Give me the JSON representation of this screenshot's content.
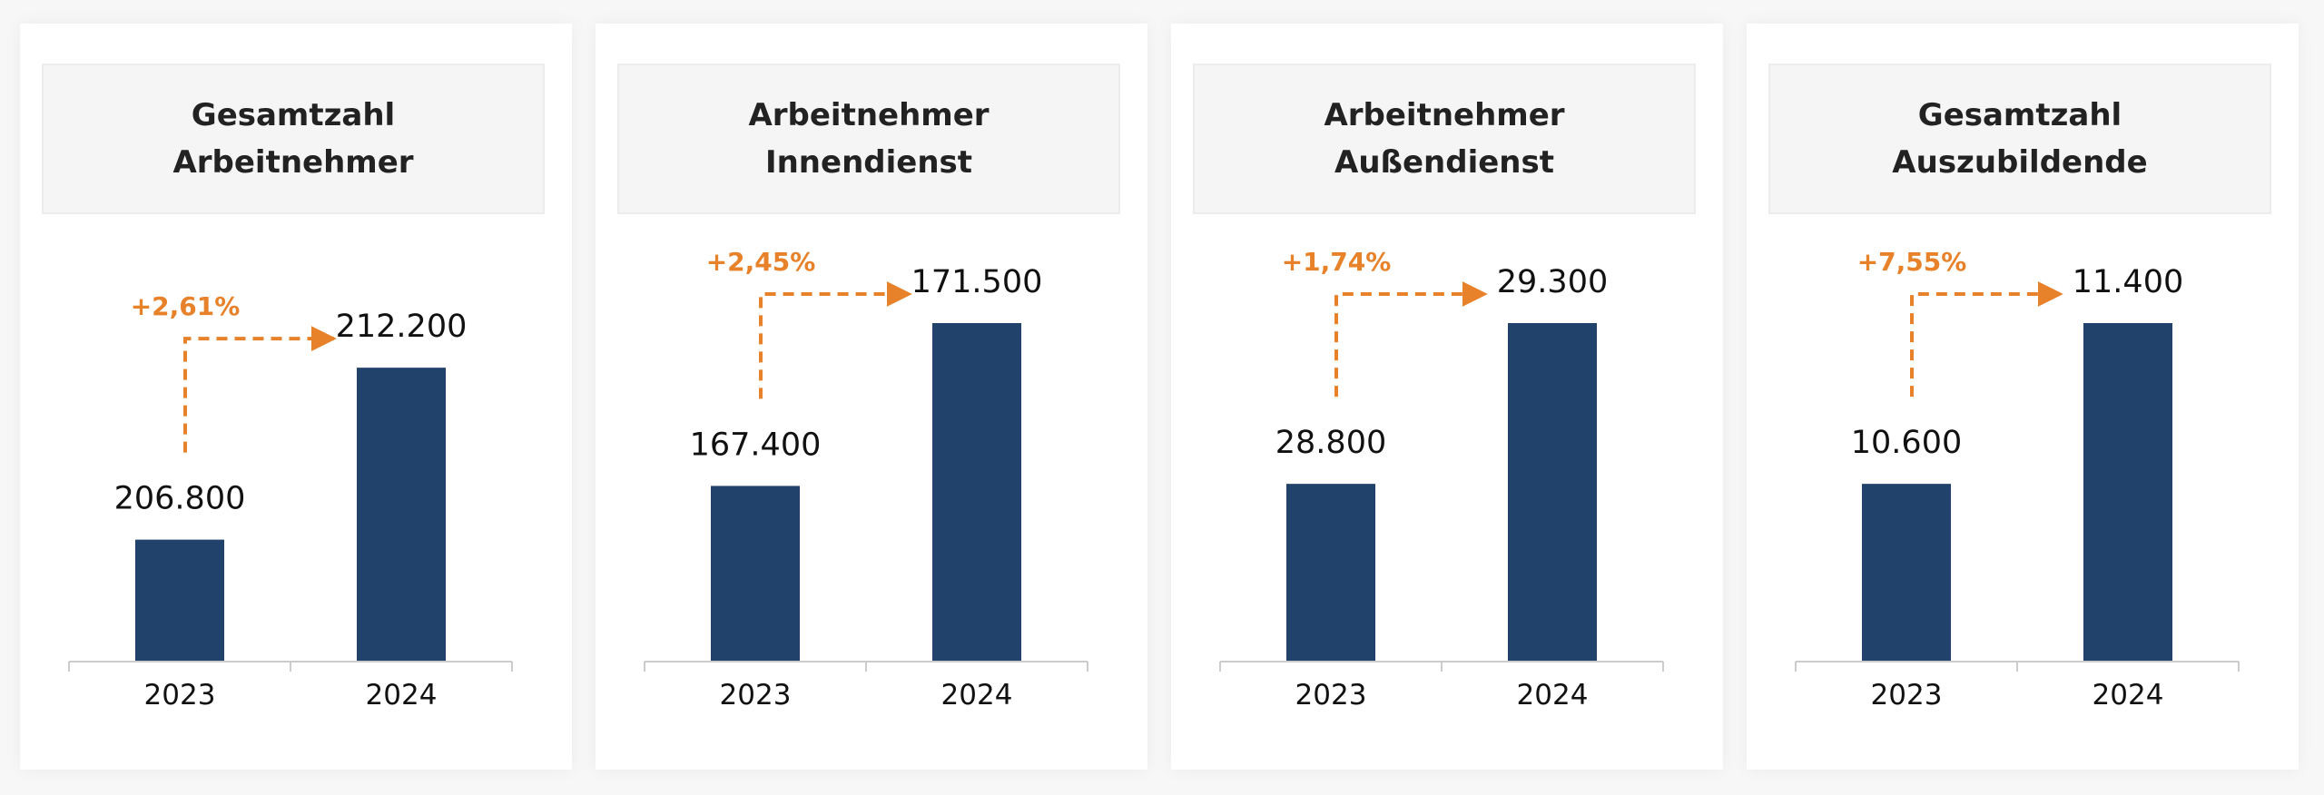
{
  "colors": {
    "bar": "#21426a",
    "accent": "#e8822a",
    "axis": "#cccccc",
    "header_bg": "#f5f5f5"
  },
  "chart_data": [
    {
      "type": "bar",
      "title": "Gesamtzahl\nArbeitnehmer",
      "categories": [
        "2023",
        "2024"
      ],
      "values": [
        206800,
        212200
      ],
      "value_labels": [
        "206.800",
        "212.200"
      ],
      "change_label": "+2,61%",
      "ylim": [
        203000,
        213600
      ],
      "grid": false,
      "legend": "none"
    },
    {
      "type": "bar",
      "title": "Arbeitnehmer\nInnendienst",
      "categories": [
        "2023",
        "2024"
      ],
      "values": [
        167400,
        171500
      ],
      "value_labels": [
        "167.400",
        "171.500"
      ],
      "change_label": "+2,45%",
      "ylim": [
        163000,
        171500
      ],
      "grid": false,
      "legend": "none"
    },
    {
      "type": "bar",
      "title": "Arbeitnehmer\nAußendienst",
      "categories": [
        "2023",
        "2024"
      ],
      "values": [
        28800,
        29300
      ],
      "value_labels": [
        "28.800",
        "29.300"
      ],
      "change_label": "+1,74%",
      "ylim": [
        28250,
        29300
      ],
      "grid": false,
      "legend": "none"
    },
    {
      "type": "bar",
      "title": "Gesamtzahl\nAuszubildende",
      "categories": [
        "2023",
        "2024"
      ],
      "values": [
        10600,
        11400
      ],
      "value_labels": [
        "10.600",
        "11.400"
      ],
      "change_label": "+7,55%",
      "ylim": [
        9720,
        11400
      ],
      "grid": false,
      "legend": "none"
    }
  ]
}
